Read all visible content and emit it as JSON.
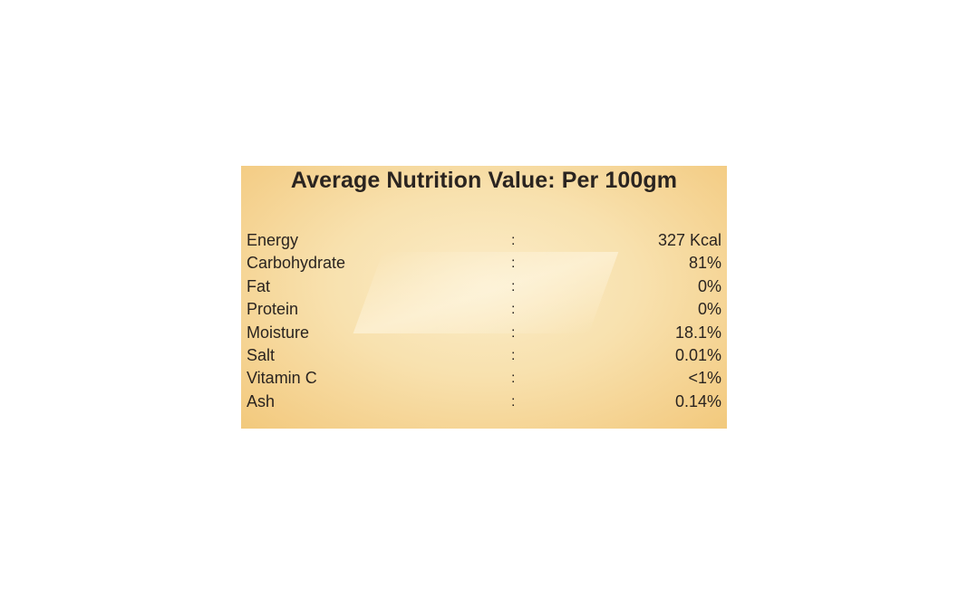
{
  "label": {
    "title": "Average Nutrition Value: Per 100gm",
    "separator": ":",
    "rows": [
      {
        "name": "Energy",
        "value": "327 Kcal"
      },
      {
        "name": "Carbohydrate",
        "value": "81%"
      },
      {
        "name": "Fat",
        "value": "0%"
      },
      {
        "name": "Protein",
        "value": "0%"
      },
      {
        "name": "Moisture",
        "value": "18.1%"
      },
      {
        "name": "Salt",
        "value": "0.01%"
      },
      {
        "name": "Vitamin C",
        "value": "<1%"
      },
      {
        "name": "Ash",
        "value": "0.14%"
      }
    ]
  },
  "colors": {
    "panel_center": "#fbecc8",
    "panel_edge": "#f2c97c",
    "text": "#2a2420"
  }
}
